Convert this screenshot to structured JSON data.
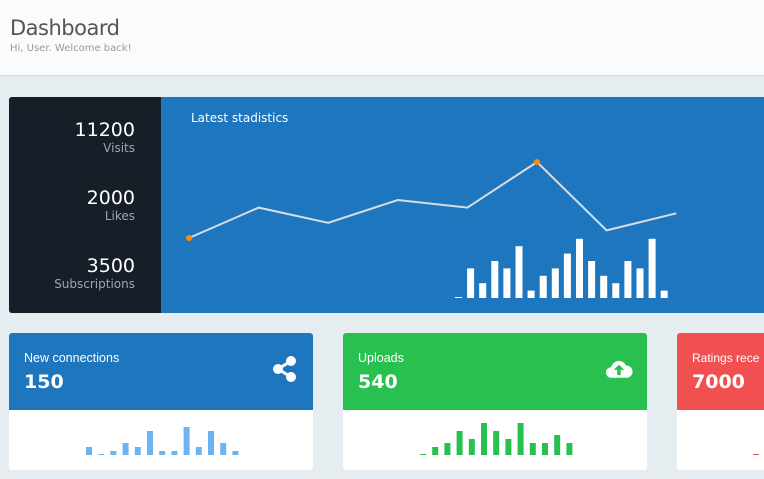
{
  "header": {
    "title": "Dashboard",
    "subtitle": "Hi, User. Welcome back!"
  },
  "stats": [
    {
      "value": "11200",
      "label": "Visits"
    },
    {
      "value": "2000",
      "label": "Likes"
    },
    {
      "value": "3500",
      "label": "Subscriptions"
    }
  ],
  "hero": {
    "title": "Latest stadistics",
    "line_values": [
      5,
      13,
      9,
      15,
      13,
      25,
      7,
      11.5
    ],
    "bar_values": [
      0,
      4,
      2,
      5,
      4,
      7,
      1,
      3,
      4,
      6,
      8,
      5,
      3,
      2,
      5,
      4,
      8,
      1
    ],
    "highlight_color": "#ff8a00"
  },
  "cards": [
    {
      "label": "New connections",
      "value": "150",
      "icon": "share-icon",
      "color": "#1e76be",
      "bar_color": "#6cb3f0",
      "bars": [
        2,
        0,
        1,
        3,
        2,
        6,
        1,
        1,
        7,
        2,
        6,
        3,
        1
      ]
    },
    {
      "label": "Uploads",
      "value": "540",
      "icon": "cloud-upload-icon",
      "color": "#28c04f",
      "bar_color": "#28c04f",
      "bars": [
        0,
        2,
        3,
        6,
        4,
        8,
        6,
        4,
        8,
        3,
        3,
        5,
        3
      ]
    },
    {
      "label": "Ratings rece",
      "value": "7000",
      "icon": "star-icon",
      "color": "#f05050",
      "bar_color": "#f05050",
      "bars": [
        0
      ]
    }
  ]
}
